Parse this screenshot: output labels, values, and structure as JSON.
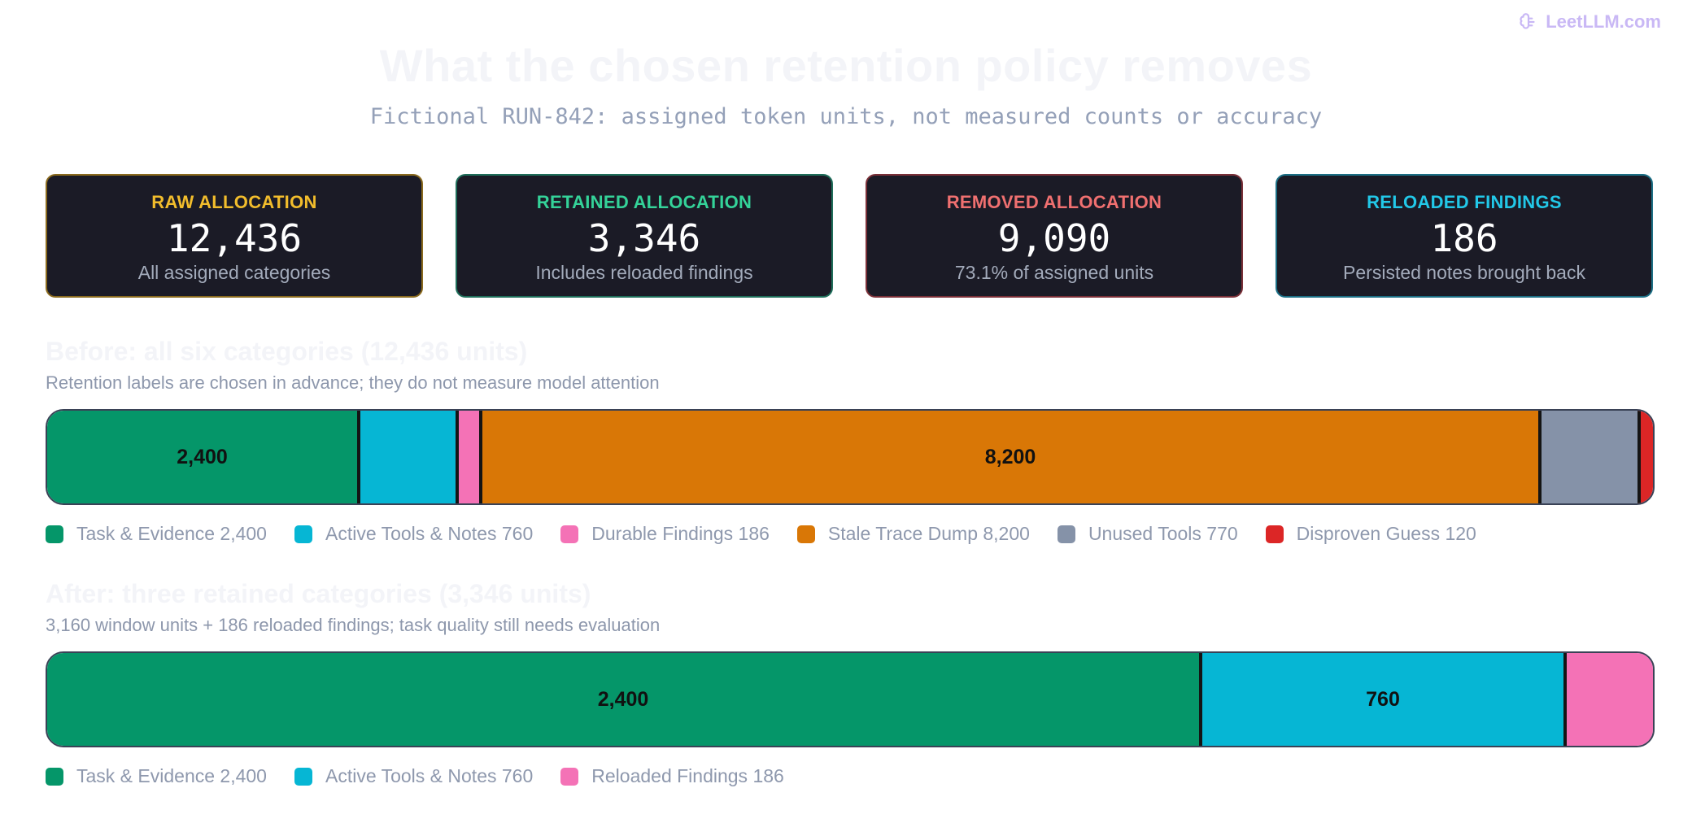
{
  "brand": {
    "name": "LeetLLM.com",
    "icon": "brain-icon",
    "color": "#c9b8f5"
  },
  "header": {
    "title": "What the chosen retention policy removes",
    "subtitle": "Fictional RUN-842: assigned token units, not measured counts or accuracy"
  },
  "cards": [
    {
      "label": "RAW ALLOCATION",
      "value": "12,436",
      "note": "All assigned categories",
      "color": "#f2bd2c",
      "border": "#8a6a1e"
    },
    {
      "label": "RETAINED ALLOCATION",
      "value": "3,346",
      "note": "Includes reloaded findings",
      "color": "#34d399",
      "border": "#1f6e5a"
    },
    {
      "label": "REMOVED ALLOCATION",
      "value": "9,090",
      "note": "73.1% of assigned units",
      "color": "#f07070",
      "border": "#7a3038"
    },
    {
      "label": "RELOADED FINDINGS",
      "value": "186",
      "note": "Persisted notes brought back",
      "color": "#22c8e8",
      "border": "#1c6f85"
    }
  ],
  "chart_data": [
    {
      "type": "bar",
      "orientation": "horizontal-stacked",
      "title": "Before: all six categories (12,436 units)",
      "subtitle": "Retention labels are chosen in advance; they do not measure model attention",
      "total": 12436,
      "series": [
        {
          "name": "Task & Evidence",
          "value": 2400,
          "legend": "Task & Evidence 2,400",
          "label": "2,400",
          "color": "#059669"
        },
        {
          "name": "Active Tools & Notes",
          "value": 760,
          "legend": "Active Tools & Notes 760",
          "label": "",
          "color": "#06b6d4"
        },
        {
          "name": "Durable Findings",
          "value": 186,
          "legend": "Durable Findings 186",
          "label": "",
          "color": "#f472b6"
        },
        {
          "name": "Stale Trace Dump",
          "value": 8200,
          "legend": "Stale Trace Dump 8,200",
          "label": "8,200",
          "color": "#d97706"
        },
        {
          "name": "Unused Tools",
          "value": 770,
          "legend": "Unused Tools 770",
          "label": "",
          "color": "#8592a8"
        },
        {
          "name": "Disproven Guess",
          "value": 120,
          "legend": "Disproven Guess 120",
          "label": "",
          "color": "#dc2626"
        }
      ]
    },
    {
      "type": "bar",
      "orientation": "horizontal-stacked",
      "title": "After: three retained categories (3,346 units)",
      "subtitle": "3,160 window units + 186 reloaded findings; task quality still needs evaluation",
      "total": 3346,
      "series": [
        {
          "name": "Task & Evidence",
          "value": 2400,
          "legend": "Task & Evidence 2,400",
          "label": "2,400",
          "color": "#059669"
        },
        {
          "name": "Active Tools & Notes",
          "value": 760,
          "legend": "Active Tools & Notes 760",
          "label": "760",
          "color": "#06b6d4"
        },
        {
          "name": "Reloaded Findings",
          "value": 186,
          "legend": "Reloaded Findings 186",
          "label": "",
          "color": "#f472b6"
        }
      ]
    }
  ]
}
